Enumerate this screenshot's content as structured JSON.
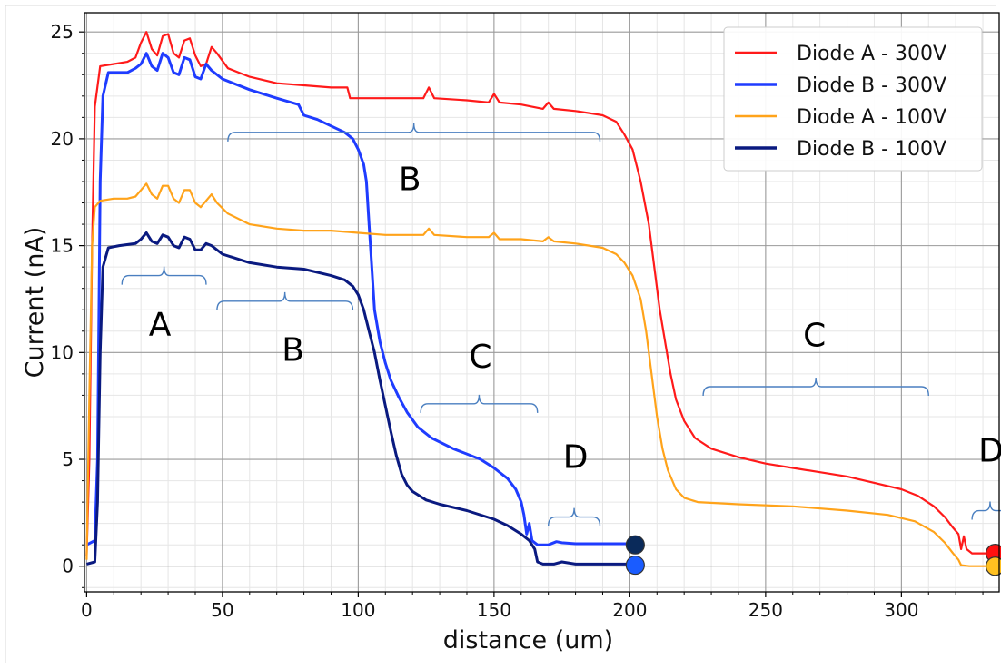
{
  "chart_data": {
    "type": "line",
    "xlabel": "distance (um)",
    "ylabel": "Current (nA)",
    "xlim": [
      -0.8,
      336
    ],
    "ylim": [
      -1.2,
      25.9
    ],
    "xticks": [
      0,
      50,
      100,
      150,
      200,
      250,
      300
    ],
    "yticks": [
      0,
      5,
      10,
      15,
      20,
      25
    ],
    "grid": true,
    "minor_grid": true,
    "legend": {
      "position": "top-right"
    },
    "series": [
      {
        "name": "Diode A - 300V",
        "color": "#ff1a1a",
        "points": [
          [
            0,
            0.5
          ],
          [
            1,
            5
          ],
          [
            2,
            15
          ],
          [
            3,
            21.5
          ],
          [
            5,
            23.4
          ],
          [
            10,
            23.5
          ],
          [
            15,
            23.6
          ],
          [
            18,
            23.8
          ],
          [
            20,
            24.5
          ],
          [
            22,
            25.0
          ],
          [
            24,
            24.2
          ],
          [
            26,
            23.9
          ],
          [
            28,
            24.8
          ],
          [
            30,
            24.9
          ],
          [
            32,
            24.0
          ],
          [
            34,
            23.8
          ],
          [
            36,
            24.6
          ],
          [
            38,
            24.7
          ],
          [
            40,
            23.9
          ],
          [
            42,
            23.4
          ],
          [
            44,
            23.5
          ],
          [
            46,
            24.3
          ],
          [
            48,
            24.0
          ],
          [
            52,
            23.3
          ],
          [
            60,
            22.9
          ],
          [
            70,
            22.6
          ],
          [
            80,
            22.5
          ],
          [
            90,
            22.4
          ],
          [
            96,
            22.4
          ],
          [
            97,
            21.9
          ],
          [
            110,
            21.9
          ],
          [
            120,
            21.9
          ],
          [
            124,
            21.9
          ],
          [
            126,
            22.4
          ],
          [
            128,
            21.9
          ],
          [
            140,
            21.8
          ],
          [
            148,
            21.7
          ],
          [
            150,
            22.1
          ],
          [
            152,
            21.7
          ],
          [
            160,
            21.6
          ],
          [
            168,
            21.4
          ],
          [
            170,
            21.7
          ],
          [
            172,
            21.4
          ],
          [
            180,
            21.3
          ],
          [
            190,
            21.1
          ],
          [
            195,
            20.8
          ],
          [
            198,
            20.2
          ],
          [
            201,
            19.5
          ],
          [
            204,
            18.0
          ],
          [
            207,
            16.0
          ],
          [
            209,
            14.0
          ],
          [
            211,
            12.0
          ],
          [
            213,
            10.5
          ],
          [
            215,
            9.0
          ],
          [
            217,
            7.8
          ],
          [
            220,
            6.8
          ],
          [
            224,
            6.0
          ],
          [
            230,
            5.5
          ],
          [
            240,
            5.1
          ],
          [
            250,
            4.8
          ],
          [
            260,
            4.6
          ],
          [
            270,
            4.4
          ],
          [
            280,
            4.2
          ],
          [
            290,
            3.9
          ],
          [
            300,
            3.6
          ],
          [
            306,
            3.3
          ],
          [
            312,
            2.8
          ],
          [
            316,
            2.3
          ],
          [
            319,
            1.8
          ],
          [
            321,
            1.5
          ],
          [
            322,
            0.8
          ],
          [
            323,
            1.4
          ],
          [
            324,
            0.8
          ],
          [
            326,
            0.6
          ],
          [
            333,
            0.6
          ]
        ]
      },
      {
        "name": "Diode B - 300V",
        "color": "#1f3cff",
        "points": [
          [
            0,
            1.0
          ],
          [
            3,
            1.2
          ],
          [
            4,
            5
          ],
          [
            5,
            18
          ],
          [
            6,
            22
          ],
          [
            8,
            23.1
          ],
          [
            12,
            23.1
          ],
          [
            15,
            23.1
          ],
          [
            18,
            23.3
          ],
          [
            20,
            23.5
          ],
          [
            22,
            24.0
          ],
          [
            24,
            23.4
          ],
          [
            26,
            23.2
          ],
          [
            28,
            24.0
          ],
          [
            30,
            23.8
          ],
          [
            32,
            23.1
          ],
          [
            34,
            23.0
          ],
          [
            36,
            23.8
          ],
          [
            38,
            23.7
          ],
          [
            40,
            22.9
          ],
          [
            42,
            22.8
          ],
          [
            44,
            23.5
          ],
          [
            46,
            23.2
          ],
          [
            50,
            22.8
          ],
          [
            60,
            22.3
          ],
          [
            70,
            21.9
          ],
          [
            78,
            21.6
          ],
          [
            80,
            21.1
          ],
          [
            85,
            20.9
          ],
          [
            90,
            20.6
          ],
          [
            95,
            20.3
          ],
          [
            98,
            20.0
          ],
          [
            100,
            19.5
          ],
          [
            102,
            18.8
          ],
          [
            103,
            18.0
          ],
          [
            104,
            16.0
          ],
          [
            105,
            14.0
          ],
          [
            106,
            12.0
          ],
          [
            108,
            10.5
          ],
          [
            110,
            9.5
          ],
          [
            112,
            8.7
          ],
          [
            115,
            7.9
          ],
          [
            118,
            7.2
          ],
          [
            122,
            6.5
          ],
          [
            127,
            6.0
          ],
          [
            135,
            5.5
          ],
          [
            145,
            5.0
          ],
          [
            150,
            4.6
          ],
          [
            155,
            4.1
          ],
          [
            158,
            3.6
          ],
          [
            160,
            3.0
          ],
          [
            161,
            2.4
          ],
          [
            162,
            1.5
          ],
          [
            163,
            2.0
          ],
          [
            164,
            1.2
          ],
          [
            166,
            1.0
          ],
          [
            170,
            1.0
          ],
          [
            173,
            1.15
          ],
          [
            175,
            1.1
          ],
          [
            180,
            1.05
          ],
          [
            190,
            1.05
          ],
          [
            200,
            1.05
          ]
        ]
      },
      {
        "name": "Diode A - 100V",
        "color": "#ffa31a",
        "points": [
          [
            0,
            0.3
          ],
          [
            1,
            8
          ],
          [
            2,
            15
          ],
          [
            3,
            16.8
          ],
          [
            5,
            17.1
          ],
          [
            10,
            17.2
          ],
          [
            15,
            17.2
          ],
          [
            18,
            17.3
          ],
          [
            20,
            17.6
          ],
          [
            22,
            17.9
          ],
          [
            24,
            17.4
          ],
          [
            26,
            17.2
          ],
          [
            28,
            17.8
          ],
          [
            30,
            17.8
          ],
          [
            32,
            17.2
          ],
          [
            34,
            17.0
          ],
          [
            36,
            17.6
          ],
          [
            38,
            17.6
          ],
          [
            40,
            17.0
          ],
          [
            42,
            16.8
          ],
          [
            44,
            17.1
          ],
          [
            46,
            17.4
          ],
          [
            48,
            17.0
          ],
          [
            52,
            16.5
          ],
          [
            60,
            16.0
          ],
          [
            70,
            15.8
          ],
          [
            80,
            15.7
          ],
          [
            90,
            15.7
          ],
          [
            100,
            15.6
          ],
          [
            110,
            15.5
          ],
          [
            120,
            15.5
          ],
          [
            124,
            15.5
          ],
          [
            126,
            15.8
          ],
          [
            128,
            15.5
          ],
          [
            140,
            15.4
          ],
          [
            148,
            15.4
          ],
          [
            150,
            15.6
          ],
          [
            152,
            15.3
          ],
          [
            160,
            15.3
          ],
          [
            168,
            15.2
          ],
          [
            170,
            15.4
          ],
          [
            172,
            15.2
          ],
          [
            180,
            15.1
          ],
          [
            190,
            14.9
          ],
          [
            195,
            14.6
          ],
          [
            198,
            14.2
          ],
          [
            201,
            13.6
          ],
          [
            204,
            12.5
          ],
          [
            206,
            11.0
          ],
          [
            208,
            9.0
          ],
          [
            210,
            7.0
          ],
          [
            212,
            5.5
          ],
          [
            214,
            4.5
          ],
          [
            217,
            3.6
          ],
          [
            220,
            3.2
          ],
          [
            225,
            3.0
          ],
          [
            240,
            2.9
          ],
          [
            260,
            2.8
          ],
          [
            280,
            2.6
          ],
          [
            295,
            2.4
          ],
          [
            305,
            2.1
          ],
          [
            312,
            1.6
          ],
          [
            316,
            1.1
          ],
          [
            319,
            0.6
          ],
          [
            321,
            0.3
          ],
          [
            322,
            0.05
          ],
          [
            325,
            0.0
          ],
          [
            333,
            0.0
          ]
        ]
      },
      {
        "name": "Diode B - 100V",
        "color": "#0a1a80",
        "points": [
          [
            0,
            0.1
          ],
          [
            3,
            0.2
          ],
          [
            4,
            3
          ],
          [
            5,
            10
          ],
          [
            6,
            14
          ],
          [
            8,
            14.9
          ],
          [
            12,
            15.0
          ],
          [
            18,
            15.1
          ],
          [
            20,
            15.3
          ],
          [
            22,
            15.6
          ],
          [
            24,
            15.2
          ],
          [
            26,
            15.1
          ],
          [
            28,
            15.5
          ],
          [
            30,
            15.4
          ],
          [
            32,
            15.0
          ],
          [
            34,
            14.9
          ],
          [
            36,
            15.4
          ],
          [
            38,
            15.3
          ],
          [
            40,
            14.8
          ],
          [
            42,
            14.8
          ],
          [
            44,
            15.1
          ],
          [
            46,
            15.0
          ],
          [
            50,
            14.6
          ],
          [
            60,
            14.2
          ],
          [
            70,
            14.0
          ],
          [
            80,
            13.9
          ],
          [
            90,
            13.6
          ],
          [
            95,
            13.4
          ],
          [
            98,
            13.1
          ],
          [
            100,
            12.7
          ],
          [
            102,
            12.0
          ],
          [
            104,
            11.0
          ],
          [
            106,
            10.0
          ],
          [
            108,
            8.7
          ],
          [
            110,
            7.5
          ],
          [
            112,
            6.3
          ],
          [
            114,
            5.2
          ],
          [
            116,
            4.3
          ],
          [
            118,
            3.8
          ],
          [
            120,
            3.5
          ],
          [
            125,
            3.1
          ],
          [
            130,
            2.9
          ],
          [
            140,
            2.6
          ],
          [
            150,
            2.2
          ],
          [
            155,
            1.9
          ],
          [
            160,
            1.5
          ],
          [
            163,
            1.2
          ],
          [
            165,
            0.8
          ],
          [
            166,
            0.2
          ],
          [
            168,
            0.1
          ],
          [
            172,
            0.1
          ],
          [
            175,
            0.2
          ],
          [
            180,
            0.1
          ],
          [
            190,
            0.1
          ],
          [
            200,
            0.1
          ]
        ]
      }
    ],
    "end_markers": [
      {
        "x": 202,
        "y": 1.0,
        "color": "#0a2a5a"
      },
      {
        "x": 202,
        "y": 0.05,
        "color": "#1a5cff"
      },
      {
        "x": 334.5,
        "y": 0.6,
        "color": "#ff1010"
      },
      {
        "x": 334.5,
        "y": 0.0,
        "color": "#ffc020"
      }
    ],
    "annotations": [
      {
        "label": "A",
        "x_from": 13,
        "x_to": 44,
        "brace_y": 13.6,
        "text_x": 27,
        "text_y": 10.8
      },
      {
        "label": "B",
        "x_from": 48,
        "x_to": 98,
        "brace_y": 12.4,
        "text_x": 76,
        "text_y": 9.6
      },
      {
        "label": "B",
        "x_from": 52,
        "x_to": 189,
        "brace_y": 20.3,
        "text_x": 119,
        "text_y": 17.6
      },
      {
        "label": "C",
        "x_from": 123,
        "x_to": 166,
        "brace_y": 7.6,
        "text_x": 145,
        "text_y": 9.3
      },
      {
        "label": "D",
        "x_from": 170,
        "x_to": 189,
        "brace_y": 2.3,
        "text_x": 180,
        "text_y": 4.6
      },
      {
        "label": "C",
        "x_from": 227,
        "x_to": 310,
        "brace_y": 8.4,
        "text_x": 268,
        "text_y": 10.3
      },
      {
        "label": "D",
        "x_from": 326,
        "x_to": 350,
        "brace_y": 2.6,
        "text_x": 333,
        "text_y": 4.9
      }
    ]
  }
}
